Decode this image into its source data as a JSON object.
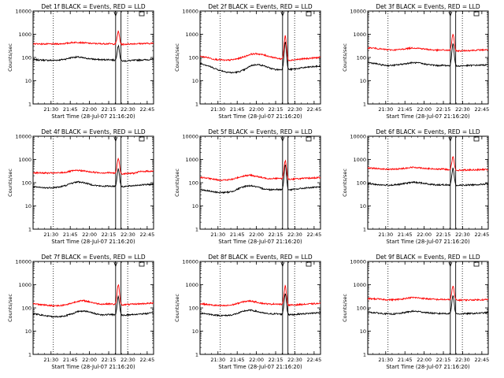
{
  "chart_data": [
    {
      "type": "line",
      "title": "Det 1f BLACK = Events, RED = LLD",
      "xlabel": "Start Time (28-Jul-07 21:16:20)",
      "ylabel": "Counts/sec",
      "yscale": "log",
      "ylim": [
        1,
        10000
      ],
      "yticks": [
        "1",
        "10",
        "100",
        "1000",
        "10000"
      ],
      "xticks": [
        "21:30",
        "21:45",
        "22:00",
        "22:15",
        "22:30",
        "22:45"
      ],
      "xlim_minutes_since_2130": [
        -14,
        80
      ],
      "series": [
        {
          "color": "#000000",
          "values": [
            80,
            78,
            76,
            75,
            78,
            85,
            100,
            105,
            95,
            88,
            82,
            80,
            82,
            320,
            70,
            72,
            75,
            78,
            80,
            82
          ]
        },
        {
          "color": "#ff0000",
          "values": [
            390,
            385,
            380,
            380,
            385,
            400,
            440,
            450,
            430,
            405,
            395,
            390,
            395,
            1300,
            360,
            380,
            390,
            395,
            400,
            405
          ]
        }
      ]
    },
    {
      "type": "line",
      "title": "Det 2f BLACK = Events, RED = LLD",
      "xlabel": "Start Time (28-Jul-07 21:16:20)",
      "ylabel": "Counts/sec",
      "yscale": "log",
      "ylim": [
        1,
        10000
      ],
      "yticks": [
        "1",
        "10",
        "100",
        "1000",
        "10000"
      ],
      "xticks": [
        "21:30",
        "21:45",
        "22:00",
        "22:15",
        "22:30",
        "22:45"
      ],
      "xlim_minutes_since_2130": [
        -14,
        80
      ],
      "series": [
        {
          "color": "#000000",
          "values": [
            55,
            45,
            35,
            28,
            24,
            22,
            24,
            30,
            45,
            50,
            45,
            35,
            30,
            480,
            30,
            32,
            35,
            38,
            40,
            42
          ]
        },
        {
          "color": "#ff0000",
          "values": [
            110,
            100,
            85,
            80,
            75,
            80,
            90,
            110,
            140,
            145,
            130,
            110,
            95,
            850,
            75,
            80,
            85,
            90,
            95,
            100
          ]
        }
      ]
    },
    {
      "type": "line",
      "title": "Det 3f BLACK = Events, RED = LLD",
      "xlabel": "Start Time (28-Jul-07 21:16:20)",
      "ylabel": "Counts/sec",
      "yscale": "log",
      "ylim": [
        1,
        10000
      ],
      "yticks": [
        "1",
        "10",
        "100",
        "1000",
        "10000"
      ],
      "xticks": [
        "21:30",
        "21:45",
        "22:00",
        "22:15",
        "22:30",
        "22:45"
      ],
      "xlim_minutes_since_2130": [
        -14,
        80
      ],
      "series": [
        {
          "color": "#000000",
          "values": [
            60,
            55,
            48,
            45,
            46,
            50,
            55,
            60,
            58,
            52,
            48,
            45,
            46,
            400,
            42,
            44,
            45,
            46,
            47,
            48
          ]
        },
        {
          "color": "#ff0000",
          "values": [
            260,
            250,
            230,
            215,
            210,
            220,
            240,
            260,
            250,
            230,
            215,
            205,
            210,
            1000,
            190,
            195,
            200,
            205,
            210,
            215
          ]
        }
      ]
    },
    {
      "type": "line",
      "title": "Det 4f BLACK = Events, RED = LLD",
      "xlabel": "Start Time (28-Jul-07 21:16:20)",
      "ylabel": "Counts/sec",
      "yscale": "log",
      "ylim": [
        1,
        10000
      ],
      "yticks": [
        "1",
        "10",
        "100",
        "1000",
        "10000"
      ],
      "xticks": [
        "21:30",
        "21:45",
        "22:00",
        "22:15",
        "22:30",
        "22:45"
      ],
      "xlim_minutes_since_2130": [
        -14,
        80
      ],
      "series": [
        {
          "color": "#000000",
          "values": [
            65,
            62,
            60,
            62,
            65,
            75,
            95,
            110,
            100,
            85,
            75,
            70,
            72,
            400,
            68,
            70,
            75,
            80,
            82,
            85
          ]
        },
        {
          "color": "#ff0000",
          "values": [
            270,
            265,
            260,
            260,
            265,
            280,
            320,
            340,
            320,
            290,
            275,
            265,
            270,
            1100,
            240,
            250,
            255,
            300,
            310,
            315
          ]
        }
      ]
    },
    {
      "type": "line",
      "title": "Det 5f BLACK = Events, RED = LLD",
      "xlabel": "Start Time (28-Jul-07 21:16:20)",
      "ylabel": "Counts/sec",
      "yscale": "log",
      "ylim": [
        1,
        10000
      ],
      "yticks": [
        "1",
        "10",
        "100",
        "1000",
        "10000"
      ],
      "xticks": [
        "21:30",
        "21:45",
        "22:00",
        "22:15",
        "22:30",
        "22:45"
      ],
      "xlim_minutes_since_2130": [
        -14,
        80
      ],
      "series": [
        {
          "color": "#000000",
          "values": [
            50,
            45,
            40,
            38,
            38,
            42,
            55,
            70,
            75,
            65,
            55,
            50,
            52,
            600,
            48,
            52,
            56,
            60,
            62,
            65
          ]
        },
        {
          "color": "#ff0000",
          "values": [
            170,
            155,
            140,
            130,
            130,
            140,
            170,
            200,
            210,
            185,
            160,
            150,
            155,
            900,
            140,
            145,
            150,
            155,
            160,
            165
          ]
        }
      ]
    },
    {
      "type": "line",
      "title": "Det 6f BLACK = Events, RED = LLD",
      "xlabel": "Start Time (28-Jul-07 21:16:20)",
      "ylabel": "Counts/sec",
      "yscale": "log",
      "ylim": [
        1,
        10000
      ],
      "yticks": [
        "1",
        "10",
        "100",
        "1000",
        "10000"
      ],
      "xticks": [
        "21:30",
        "21:45",
        "22:00",
        "22:15",
        "22:30",
        "22:45"
      ],
      "xlim_minutes_since_2130": [
        -14,
        80
      ],
      "series": [
        {
          "color": "#000000",
          "values": [
            90,
            85,
            80,
            78,
            80,
            85,
            95,
            105,
            100,
            92,
            85,
            80,
            82,
            420,
            75,
            78,
            80,
            82,
            85,
            88
          ]
        },
        {
          "color": "#ff0000",
          "values": [
            420,
            410,
            390,
            380,
            380,
            395,
            430,
            460,
            445,
            415,
            395,
            380,
            385,
            1300,
            340,
            350,
            355,
            360,
            365,
            370
          ]
        }
      ]
    },
    {
      "type": "line",
      "title": "Det 7f BLACK = Events, RED = LLD",
      "xlabel": "Start Time (28-Jul-07 21:16:20)",
      "ylabel": "Counts/sec",
      "yscale": "log",
      "ylim": [
        1,
        10000
      ],
      "yticks": [
        "1",
        "10",
        "100",
        "1000",
        "10000"
      ],
      "xticks": [
        "21:30",
        "21:45",
        "22:00",
        "22:15",
        "22:30",
        "22:45"
      ],
      "xlim_minutes_since_2130": [
        -14,
        80
      ],
      "series": [
        {
          "color": "#000000",
          "values": [
            55,
            50,
            45,
            42,
            42,
            46,
            55,
            70,
            75,
            65,
            55,
            50,
            52,
            300,
            48,
            50,
            52,
            55,
            57,
            60
          ]
        },
        {
          "color": "#ff0000",
          "values": [
            150,
            140,
            130,
            125,
            125,
            135,
            160,
            195,
            205,
            180,
            155,
            145,
            150,
            1000,
            135,
            140,
            145,
            150,
            155,
            160
          ]
        }
      ]
    },
    {
      "type": "line",
      "title": "Det 8f BLACK = Events, RED = LLD",
      "xlabel": "Start Time (28-Jul-07 21:16:20)",
      "ylabel": "Counts/sec",
      "yscale": "log",
      "ylim": [
        1,
        10000
      ],
      "yticks": [
        "1",
        "10",
        "100",
        "1000",
        "10000"
      ],
      "xticks": [
        "21:30",
        "21:45",
        "22:00",
        "22:15",
        "22:30",
        "22:45"
      ],
      "xlim_minutes_since_2130": [
        -14,
        80
      ],
      "series": [
        {
          "color": "#000000",
          "values": [
            60,
            55,
            50,
            47,
            47,
            50,
            60,
            75,
            80,
            70,
            60,
            55,
            56,
            420,
            50,
            52,
            55,
            57,
            60,
            62
          ]
        },
        {
          "color": "#ff0000",
          "values": [
            150,
            140,
            130,
            125,
            125,
            135,
            160,
            190,
            200,
            175,
            155,
            145,
            150,
            900,
            130,
            135,
            140,
            145,
            150,
            155
          ]
        }
      ]
    },
    {
      "type": "line",
      "title": "Det 9f BLACK = Events, RED = LLD",
      "xlabel": "Start Time (28-Jul-07 21:16:20)",
      "ylabel": "Counts/sec",
      "yscale": "log",
      "ylim": [
        1,
        10000
      ],
      "yticks": [
        "1",
        "10",
        "100",
        "1000",
        "10000"
      ],
      "xticks": [
        "21:30",
        "21:45",
        "22:00",
        "22:15",
        "22:30",
        "22:45"
      ],
      "xlim_minutes_since_2130": [
        -14,
        80
      ],
      "series": [
        {
          "color": "#000000",
          "values": [
            65,
            62,
            58,
            55,
            55,
            58,
            65,
            72,
            70,
            64,
            60,
            57,
            58,
            350,
            55,
            56,
            57,
            58,
            60,
            62
          ]
        },
        {
          "color": "#ff0000",
          "values": [
            250,
            245,
            235,
            225,
            225,
            235,
            260,
            280,
            270,
            250,
            240,
            230,
            232,
            850,
            215,
            218,
            220,
            222,
            225,
            228
          ]
        }
      ]
    }
  ]
}
